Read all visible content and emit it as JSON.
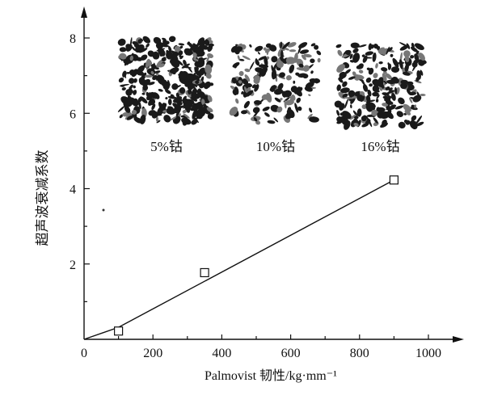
{
  "chart_data": {
    "type": "scatter",
    "xlabel": "Palmovist 韧性/kg·mm⁻¹",
    "ylabel": "超声波衰减系数",
    "xlim": [
      0,
      1050
    ],
    "ylim": [
      0,
      8.5
    ],
    "xticks": [
      "0",
      "200",
      "400",
      "600",
      "800",
      "1000"
    ],
    "yticks": [
      "2",
      "4",
      "6",
      "8"
    ],
    "points": [
      {
        "x": 100,
        "y": 0.22
      },
      {
        "x": 350,
        "y": 1.77
      },
      {
        "x": 900,
        "y": 4.23
      }
    ],
    "fit_line": {
      "x": [
        0,
        100,
        900
      ],
      "y": [
        0,
        0.32,
        4.23
      ]
    },
    "insets": [
      {
        "label": "5%钴",
        "value": 5
      },
      {
        "label": "10%钴",
        "value": 10
      },
      {
        "label": "16%钴",
        "value": 16
      }
    ],
    "grid": false,
    "marker": "open-square"
  }
}
